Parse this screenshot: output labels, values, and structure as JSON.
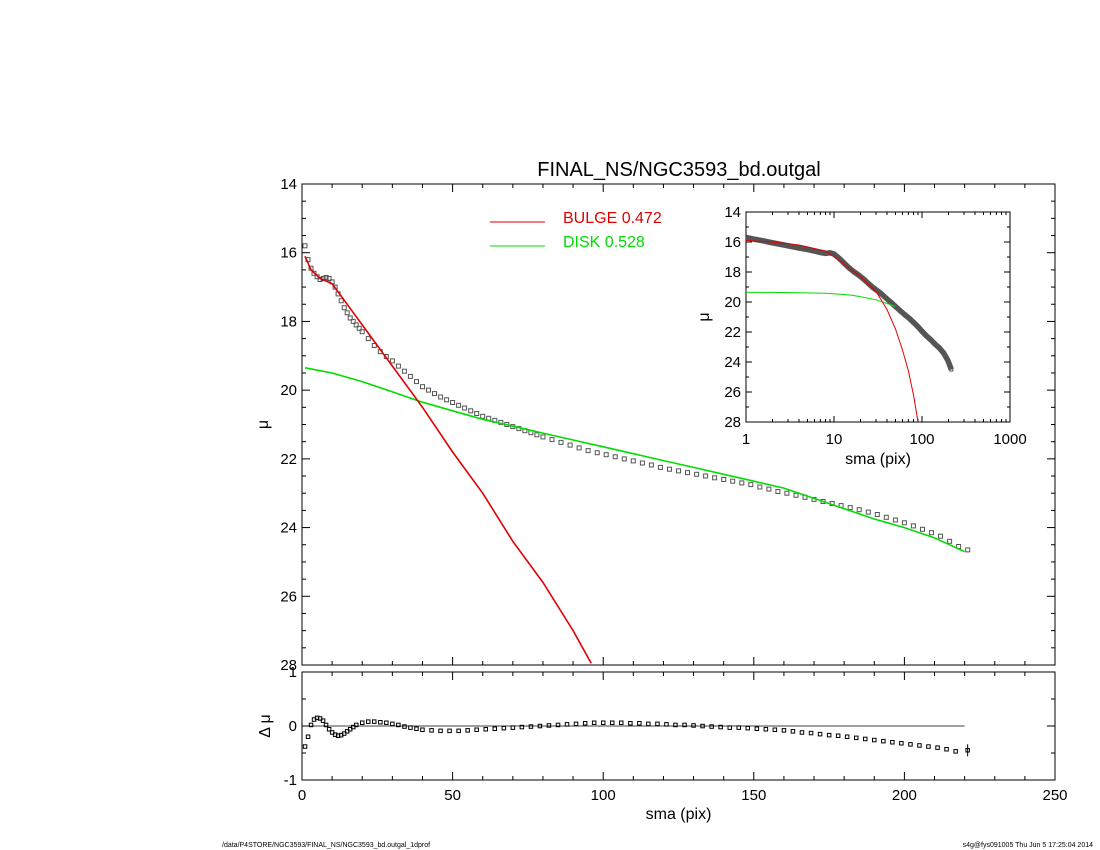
{
  "colors": {
    "bulge": "#e00000",
    "disk": "#00dd00",
    "data": "#555555",
    "axes": "#000000"
  },
  "footer": {
    "left": "/data/P4STORE/NGC3593/FINAL_NS/NGC3593_bd.outgal_1dprof",
    "right": "s4g@fys091005  Thu Jun  5 17:25:04 2014"
  },
  "chart_data": [
    {
      "id": "main",
      "type": "line",
      "title": "FINAL_NS/NGC3593_bd.outgal",
      "xlabel": "",
      "ylabel": "μ",
      "xlim": [
        0,
        250
      ],
      "ylim": [
        28,
        14
      ],
      "yticks": [
        "14",
        "16",
        "18",
        "20",
        "22",
        "24",
        "26",
        "28"
      ],
      "legend": [
        {
          "name": "BULGE",
          "value": "0.472",
          "color": "#e00000"
        },
        {
          "name": "DISK",
          "value": "0.528",
          "color": "#00dd00"
        }
      ],
      "legend_position": "top-center",
      "series": [
        {
          "name": "BULGE",
          "color": "#e00000",
          "x": [
            1,
            3,
            6,
            10,
            15,
            20,
            30,
            40,
            50,
            60,
            70,
            80,
            90,
            96
          ],
          "y": [
            16.1,
            16.5,
            16.75,
            16.9,
            17.5,
            18.1,
            19.3,
            20.5,
            21.8,
            23.0,
            24.4,
            25.6,
            27.0,
            27.95
          ]
        },
        {
          "name": "DISK",
          "color": "#00dd00",
          "x": [
            1,
            10,
            20,
            30,
            40,
            50,
            60,
            70,
            80,
            90,
            100,
            110,
            120,
            130,
            140,
            150,
            160,
            170,
            180,
            190,
            200,
            210,
            215,
            220
          ],
          "y": [
            19.35,
            19.5,
            19.75,
            20.05,
            20.35,
            20.6,
            20.85,
            21.05,
            21.25,
            21.45,
            21.65,
            21.85,
            22.05,
            22.25,
            22.45,
            22.65,
            22.85,
            23.15,
            23.45,
            23.75,
            24.0,
            24.3,
            24.5,
            24.7
          ]
        },
        {
          "name": "data",
          "color": "#555555",
          "marker": "square",
          "x": [
            1,
            2,
            3,
            4,
            5,
            6,
            7,
            8,
            9,
            10,
            11,
            12,
            13,
            14,
            15,
            16,
            17,
            18,
            19,
            20,
            22,
            24,
            26,
            28,
            30,
            32,
            34,
            36,
            38,
            40,
            42,
            44,
            46,
            48,
            50,
            52,
            54,
            56,
            58,
            60,
            62,
            64,
            66,
            68,
            70,
            72,
            74,
            76,
            78,
            80,
            83,
            86,
            89,
            92,
            95,
            98,
            101,
            104,
            107,
            110,
            113,
            116,
            119,
            122,
            125,
            128,
            131,
            134,
            137,
            140,
            143,
            146,
            149,
            152,
            155,
            158,
            161,
            164,
            167,
            170,
            173,
            176,
            179,
            182,
            185,
            188,
            191,
            194,
            197,
            200,
            203,
            206,
            209,
            212,
            215,
            218,
            221
          ],
          "y": [
            15.8,
            16.2,
            16.45,
            16.6,
            16.7,
            16.78,
            16.75,
            16.72,
            16.75,
            16.85,
            17.0,
            17.2,
            17.4,
            17.6,
            17.75,
            17.9,
            18.0,
            18.1,
            18.2,
            18.3,
            18.5,
            18.7,
            18.88,
            19.02,
            19.15,
            19.3,
            19.45,
            19.6,
            19.75,
            19.9,
            20.0,
            20.1,
            20.2,
            20.28,
            20.36,
            20.44,
            20.52,
            20.6,
            20.68,
            20.76,
            20.82,
            20.88,
            20.94,
            21.0,
            21.06,
            21.12,
            21.18,
            21.24,
            21.3,
            21.36,
            21.44,
            21.52,
            21.6,
            21.68,
            21.76,
            21.82,
            21.88,
            21.94,
            22.0,
            22.06,
            22.12,
            22.18,
            22.25,
            22.3,
            22.35,
            22.4,
            22.45,
            22.5,
            22.55,
            22.6,
            22.65,
            22.7,
            22.75,
            22.82,
            22.88,
            22.95,
            23.0,
            23.06,
            23.12,
            23.18,
            23.24,
            23.3,
            23.36,
            23.42,
            23.48,
            23.55,
            23.62,
            23.7,
            23.78,
            23.86,
            23.95,
            24.05,
            24.15,
            24.25,
            24.4,
            24.55,
            24.65
          ]
        }
      ]
    },
    {
      "id": "residual",
      "type": "line",
      "xlabel": "sma (pix)",
      "ylabel": "Δ μ",
      "xlim": [
        0,
        250
      ],
      "ylim": [
        -1,
        1
      ],
      "xticks": [
        "0",
        "50",
        "100",
        "150",
        "200",
        "250"
      ],
      "yticks": [
        "1",
        "0",
        "-1"
      ],
      "series": [
        {
          "name": "zero",
          "color": "#000000",
          "x": [
            0,
            220
          ],
          "y": [
            0,
            0
          ]
        },
        {
          "name": "residual",
          "color": "#000000",
          "marker": "square",
          "x": [
            1,
            2,
            3,
            4,
            5,
            6,
            7,
            8,
            9,
            10,
            11,
            12,
            13,
            14,
            15,
            16,
            17,
            18,
            20,
            22,
            24,
            26,
            28,
            30,
            32,
            34,
            36,
            38,
            40,
            43,
            46,
            49,
            52,
            55,
            58,
            61,
            64,
            67,
            70,
            73,
            76,
            79,
            82,
            85,
            88,
            91,
            94,
            97,
            100,
            103,
            106,
            109,
            112,
            115,
            118,
            121,
            124,
            127,
            130,
            133,
            136,
            139,
            142,
            145,
            148,
            151,
            154,
            157,
            160,
            163,
            166,
            169,
            172,
            175,
            178,
            181,
            184,
            187,
            190,
            193,
            196,
            199,
            202,
            205,
            208,
            211,
            214,
            217,
            221
          ],
          "y": [
            -0.38,
            -0.2,
            0.02,
            0.12,
            0.15,
            0.14,
            0.1,
            0.02,
            -0.06,
            -0.12,
            -0.16,
            -0.18,
            -0.17,
            -0.14,
            -0.1,
            -0.06,
            -0.02,
            0.02,
            0.06,
            0.08,
            0.08,
            0.07,
            0.06,
            0.04,
            0.02,
            -0.01,
            -0.03,
            -0.05,
            -0.07,
            -0.08,
            -0.09,
            -0.09,
            -0.09,
            -0.08,
            -0.07,
            -0.06,
            -0.05,
            -0.04,
            -0.03,
            -0.02,
            -0.01,
            0.0,
            0.01,
            0.02,
            0.03,
            0.04,
            0.05,
            0.06,
            0.06,
            0.06,
            0.06,
            0.05,
            0.05,
            0.04,
            0.04,
            0.03,
            0.02,
            0.02,
            0.01,
            0.0,
            -0.01,
            -0.02,
            -0.03,
            -0.03,
            -0.04,
            -0.05,
            -0.06,
            -0.07,
            -0.08,
            -0.1,
            -0.12,
            -0.13,
            -0.15,
            -0.17,
            -0.18,
            -0.2,
            -0.22,
            -0.24,
            -0.26,
            -0.28,
            -0.3,
            -0.32,
            -0.34,
            -0.36,
            -0.38,
            -0.4,
            -0.43,
            -0.47,
            -0.45
          ]
        }
      ]
    },
    {
      "id": "inset",
      "type": "line",
      "xscale": "log",
      "xlabel": "sma (pix)",
      "ylabel": "μ",
      "xlim": [
        1,
        1000
      ],
      "ylim": [
        28,
        14
      ],
      "xticks": [
        "1",
        "10",
        "100",
        "1000"
      ],
      "yticks": [
        "14",
        "16",
        "18",
        "20",
        "22",
        "24",
        "26",
        "28"
      ],
      "series": [
        {
          "name": "BULGE",
          "color": "#e00000",
          "x": [
            1,
            2,
            4,
            8,
            12,
            16,
            20,
            30,
            40,
            50,
            60,
            70,
            80,
            90
          ],
          "y": [
            15.9,
            16.0,
            16.2,
            16.6,
            17.3,
            17.9,
            18.3,
            19.3,
            20.5,
            21.8,
            23.2,
            24.6,
            26.2,
            28.0
          ]
        },
        {
          "name": "DISK",
          "color": "#00dd00",
          "x": [
            1,
            2,
            4,
            8,
            12,
            16,
            20,
            30,
            40,
            50
          ],
          "y": [
            19.35,
            19.36,
            19.38,
            19.42,
            19.48,
            19.55,
            19.65,
            19.85,
            20.1,
            20.3
          ]
        },
        {
          "name": "data",
          "color": "#555555",
          "marker": "square",
          "x": [
            1,
            1.2,
            1.5,
            1.8,
            2.2,
            2.7,
            3.3,
            4,
            5,
            6,
            7,
            8,
            9,
            10,
            11,
            12,
            13,
            15,
            17,
            19,
            22,
            25,
            28,
            32,
            36,
            40,
            45,
            50,
            57,
            64,
            72,
            80,
            90,
            100,
            112,
            125,
            140,
            157,
            176,
            197,
            215
          ],
          "y": [
            15.7,
            15.8,
            15.9,
            16.0,
            16.1,
            16.2,
            16.3,
            16.4,
            16.5,
            16.6,
            16.7,
            16.75,
            16.72,
            16.8,
            17.0,
            17.2,
            17.4,
            17.75,
            18.0,
            18.2,
            18.5,
            18.8,
            19.05,
            19.3,
            19.55,
            19.8,
            20.05,
            20.3,
            20.6,
            20.85,
            21.1,
            21.35,
            21.65,
            21.95,
            22.25,
            22.5,
            22.8,
            23.05,
            23.4,
            23.9,
            24.5
          ]
        }
      ]
    }
  ]
}
